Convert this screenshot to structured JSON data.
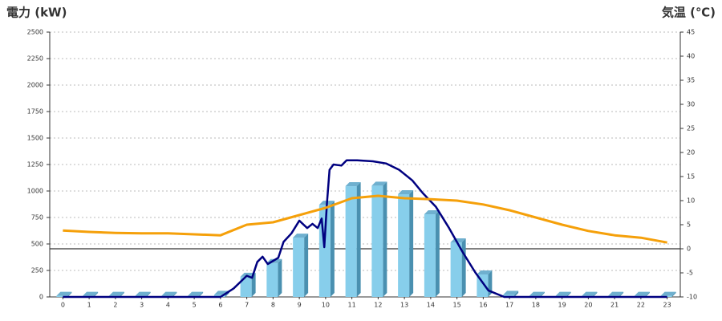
{
  "chart_data": {
    "type": "combo",
    "y_label": "電力 (kW)",
    "y2_label": "気温 (℃)",
    "y_label_color": "#1f5fa8",
    "y2_label_color": "#f08a1a",
    "categories": [
      "0",
      "1",
      "2",
      "3",
      "4",
      "5",
      "6",
      "7",
      "8",
      "9",
      "10",
      "11",
      "12",
      "13",
      "14",
      "15",
      "16",
      "17",
      "18",
      "19",
      "20",
      "21",
      "22",
      "23"
    ],
    "ylim": [
      0,
      2500
    ],
    "yticks": [
      0,
      250,
      500,
      750,
      1000,
      1250,
      1500,
      1750,
      2000,
      2250,
      2500
    ],
    "y2lim": [
      -10,
      45
    ],
    "y2ticks": [
      -10,
      -5,
      0,
      5,
      10,
      15,
      20,
      25,
      30,
      35,
      40,
      45
    ],
    "grid": true,
    "series": [
      {
        "type": "bar",
        "color": "#87ceeb",
        "values": [
          10,
          10,
          10,
          10,
          10,
          10,
          20,
          190,
          320,
          560,
          870,
          1045,
          1050,
          970,
          780,
          515,
          212,
          20,
          10,
          10,
          10,
          10,
          10,
          10
        ]
      },
      {
        "type": "line",
        "color": "#000080",
        "x": [
          0,
          6,
          6.5,
          7,
          7.2,
          7.4,
          7.6,
          7.8,
          8,
          8.2,
          8.4,
          8.7,
          9,
          9.3,
          9.5,
          9.7,
          9.85,
          9.95,
          10.05,
          10.15,
          10.3,
          10.6,
          10.8,
          11.2,
          11.8,
          12.3,
          12.8,
          13.3,
          13.7,
          14.2,
          14.7,
          15.2,
          15.7,
          16.2,
          16.8,
          23
        ],
        "values": [
          0,
          0,
          80,
          200,
          180,
          330,
          380,
          310,
          340,
          370,
          520,
          600,
          720,
          650,
          690,
          650,
          740,
          470,
          880,
          1200,
          1250,
          1240,
          1290,
          1290,
          1280,
          1260,
          1200,
          1100,
          980,
          850,
          650,
          430,
          230,
          60,
          0,
          0
        ]
      },
      {
        "type": "line",
        "axis": "y2",
        "color": "#f5a00a",
        "values": [
          3.8,
          3.5,
          3.3,
          3.2,
          3.2,
          3,
          2.8,
          5,
          5.5,
          7,
          8.5,
          10.5,
          11,
          10.5,
          10.3,
          10,
          9.2,
          8,
          6.5,
          5,
          3.7,
          2.8,
          2.3,
          1.3
        ]
      }
    ]
  }
}
